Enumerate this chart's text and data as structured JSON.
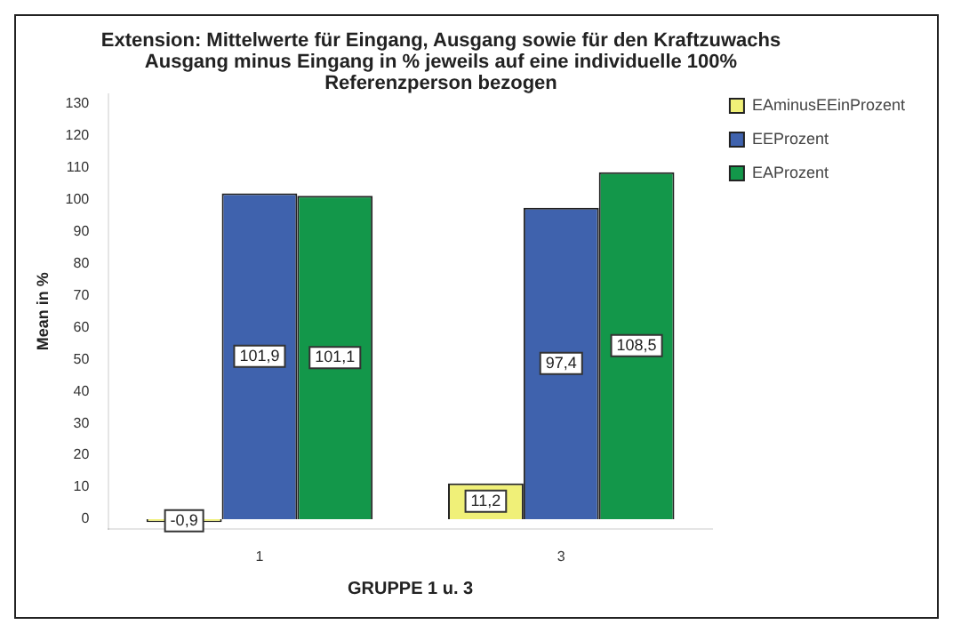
{
  "chart_data": {
    "type": "bar",
    "title": "Extension: Mittelwerte für Eingang, Ausgang sowie für  den Kraftzuwachs Ausgang minus Eingang in % jeweils auf eine individuelle 100% Referenzperson bezogen",
    "xlabel": "GRUPPE 1 u. 3",
    "ylabel": "Mean in %",
    "categories": [
      "1",
      "3"
    ],
    "series": [
      {
        "name": "EAminusEEinProzent",
        "color": "#f0f078",
        "values": [
          -0.9,
          11.2
        ],
        "value_labels": [
          "-0,9",
          "11,2"
        ]
      },
      {
        "name": "EEProzent",
        "color": "#3f62ad",
        "values": [
          101.9,
          97.4
        ],
        "value_labels": [
          "101,9",
          "97,4"
        ]
      },
      {
        "name": "EAProzent",
        "color": "#13974a",
        "values": [
          101.1,
          108.5
        ],
        "value_labels": [
          "101,1",
          "108,5"
        ]
      }
    ],
    "ylim": [
      -3,
      133
    ],
    "yticks": [
      0,
      10,
      20,
      30,
      40,
      50,
      60,
      70,
      80,
      90,
      100,
      110,
      120,
      130
    ],
    "grid": false,
    "legend": "top right"
  }
}
